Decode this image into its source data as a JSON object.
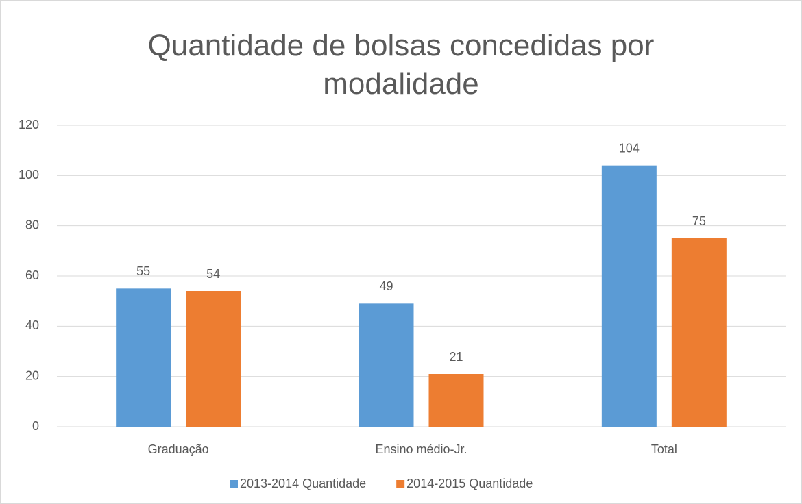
{
  "chart_data": {
    "type": "bar",
    "title": "Quantidade de bolsas concedidas por modalidade",
    "categories": [
      "Graduação",
      "Ensino médio-Jr.",
      "Total"
    ],
    "series": [
      {
        "name": "2013-2014 Quantidade",
        "color": "#5b9bd5",
        "values": [
          55,
          49,
          104
        ]
      },
      {
        "name": "2014-2015 Quantidade",
        "color": "#ed7d31",
        "values": [
          54,
          21,
          75
        ]
      }
    ],
    "ylim": [
      0,
      120
    ],
    "yticks": [
      0,
      20,
      40,
      60,
      80,
      100,
      120
    ],
    "grid": true,
    "legend": "bottom"
  }
}
